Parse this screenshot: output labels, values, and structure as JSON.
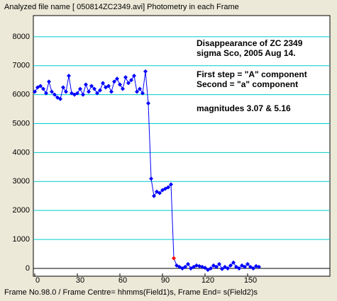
{
  "window": {
    "header": "Analyzed file name [ 050814ZC2349.avi]   Photometry in each Frame",
    "footer": "Frame No.98.0 / Frame Centre= hhmms(Field1)s,  Frame End= s(Field2)s"
  },
  "chart_data": {
    "type": "line",
    "annotations": [
      "Disappearance of ZC 2349",
      "sigma Sco,  2005 Aug 14.",
      "First step = \"A\" component",
      "Second   = \"a\" component",
      "magnitudes 3.07 & 5.16"
    ],
    "x": [
      0,
      2,
      4,
      6,
      8,
      10,
      12,
      14,
      16,
      18,
      20,
      22,
      24,
      26,
      28,
      30,
      32,
      34,
      36,
      38,
      40,
      42,
      44,
      46,
      48,
      50,
      52,
      54,
      56,
      58,
      60,
      62,
      64,
      66,
      68,
      70,
      72,
      74,
      76,
      78,
      80,
      82,
      84,
      86,
      88,
      90,
      92,
      94,
      96,
      98,
      100,
      102,
      104,
      106,
      108,
      110,
      112,
      114,
      116,
      118,
      120,
      122,
      124,
      126,
      128,
      130,
      132,
      134,
      136,
      138,
      140,
      142,
      144,
      146,
      148,
      150,
      152,
      154,
      156,
      158
    ],
    "series": [
      {
        "color": "#0000ff",
        "highlight": {
          "x": 98,
          "color": "#ff0000"
        },
        "values": [
          6100,
          6250,
          6300,
          6200,
          6050,
          6450,
          6100,
          6000,
          5900,
          5850,
          6250,
          6100,
          6650,
          6050,
          6000,
          6050,
          6200,
          6000,
          6350,
          6100,
          6300,
          6200,
          6050,
          6150,
          6400,
          6250,
          6300,
          6100,
          6450,
          6550,
          6350,
          6200,
          6600,
          6400,
          6500,
          6650,
          6100,
          6200,
          6050,
          6800,
          5700,
          3100,
          2500,
          2650,
          2600,
          2700,
          2750,
          2800,
          2900,
          350,
          100,
          50,
          0,
          50,
          150,
          0,
          50,
          100,
          80,
          50,
          20,
          -50,
          0,
          100,
          50,
          150,
          -20,
          50,
          0,
          100,
          200,
          50,
          0,
          100,
          50,
          150,
          50,
          0,
          80,
          50
        ]
      }
    ],
    "xlim": [
      -1,
      208
    ],
    "ylim": [
      -270,
      8730
    ],
    "xticks": [
      0,
      30,
      60,
      90,
      120,
      150
    ],
    "yticks": [
      0,
      1000,
      2000,
      3000,
      4000,
      5000,
      6000,
      7000,
      8000
    ],
    "grid": true,
    "grid_color": "#00cccc"
  }
}
